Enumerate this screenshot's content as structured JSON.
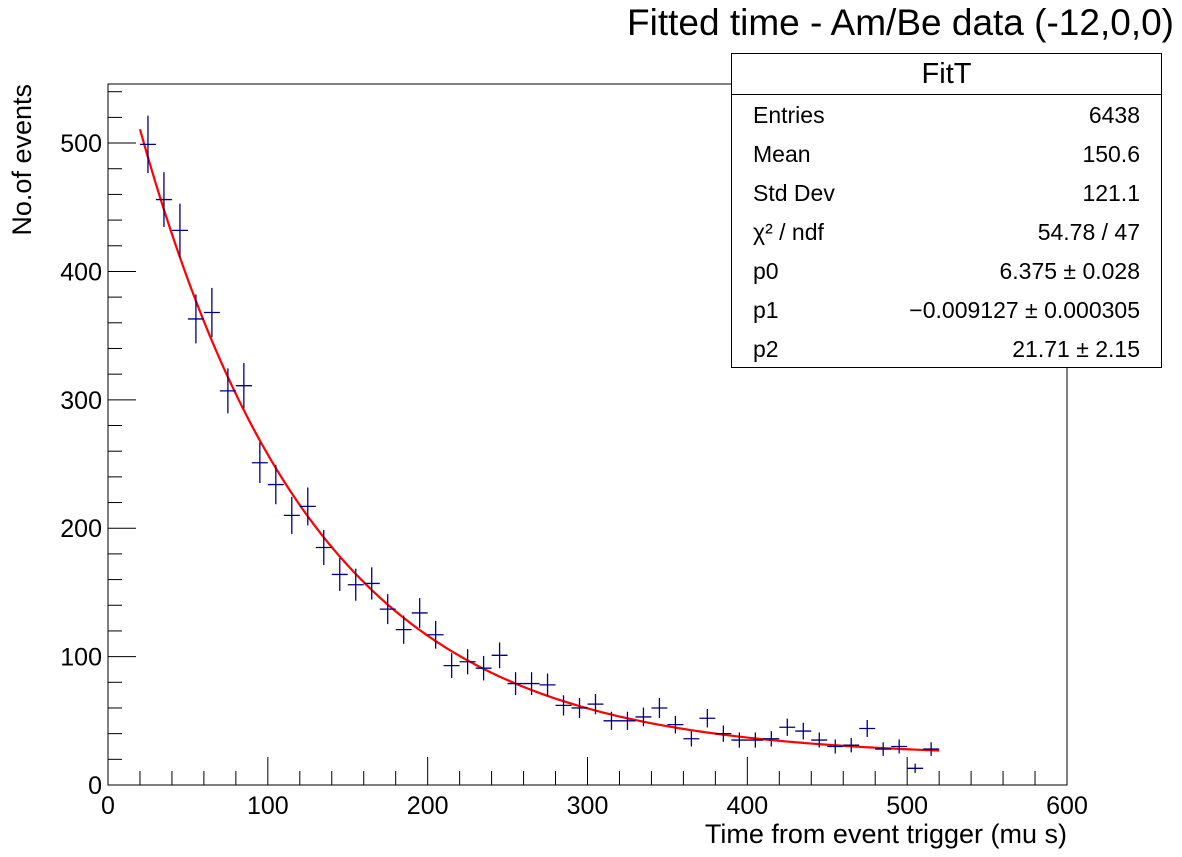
{
  "title": "Fitted time - Am/Be data (-12,0,0)",
  "stats_box": {
    "name": "FitT",
    "rows": [
      {
        "label": "Entries",
        "value": "6438"
      },
      {
        "label": "Mean",
        "value": "150.6"
      },
      {
        "label": "Std Dev",
        "value": "121.1"
      },
      {
        "label": "χ² / ndf",
        "value": "54.78 / 47"
      },
      {
        "label": "p0",
        "value": "6.375 ± 0.028"
      },
      {
        "label": "p1",
        "value": "−0.009127 ± 0.000305"
      },
      {
        "label": "p2",
        "value": "21.71 ± 2.15"
      }
    ]
  },
  "chart_data": {
    "type": "scatter",
    "title": "Fitted time - Am/Be data (-12,0,0)",
    "xlabel": "Time from event trigger (mu s)",
    "ylabel": "No.of events",
    "xlim": [
      0,
      600
    ],
    "ylim": [
      0,
      546
    ],
    "x_ticks": [
      "0",
      "100",
      "200",
      "300",
      "400",
      "500",
      "600"
    ],
    "y_ticks": [
      "0",
      "100",
      "200",
      "300",
      "400",
      "500"
    ],
    "grid": false,
    "bin_width": 10,
    "series": [
      {
        "marker": "error-bar-cross",
        "color": "#000080",
        "x": [
          25,
          35,
          45,
          55,
          65,
          75,
          85,
          95,
          105,
          115,
          125,
          135,
          145,
          155,
          165,
          175,
          185,
          195,
          205,
          215,
          225,
          235,
          245,
          255,
          265,
          275,
          285,
          295,
          305,
          315,
          325,
          335,
          345,
          355,
          365,
          375,
          385,
          395,
          405,
          415,
          425,
          435,
          445,
          455,
          465,
          475,
          485,
          495,
          505,
          515
        ],
        "y": [
          499,
          456,
          432,
          363,
          368,
          307,
          311,
          251,
          234,
          210,
          217,
          185,
          164,
          156,
          157,
          137,
          121,
          134,
          117,
          93,
          96,
          91,
          101,
          79,
          79,
          78,
          62,
          60,
          63,
          50,
          50,
          53,
          60,
          47,
          36,
          52,
          40,
          35,
          35,
          36,
          45,
          42,
          35,
          30,
          31,
          44,
          28,
          30,
          13,
          28
        ]
      },
      {
        "type": "line",
        "color": "#ff0000",
        "function": "exp(p0 + p1*x) + p2",
        "params": {
          "p0": 6.375,
          "p1": -0.009127,
          "p2": 21.71
        },
        "x_range": [
          20,
          520
        ]
      }
    ]
  }
}
